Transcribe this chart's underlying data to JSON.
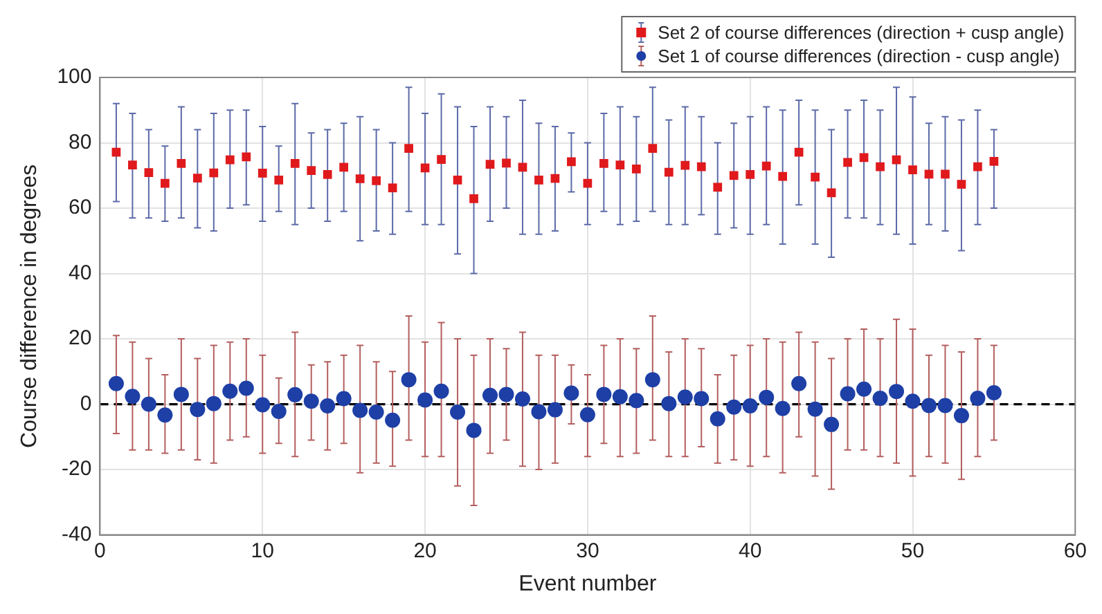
{
  "chart_data": {
    "type": "scatter",
    "xlabel": "Event number",
    "ylabel": "Course difference in degrees",
    "x": [
      1,
      2,
      3,
      4,
      5,
      6,
      7,
      8,
      9,
      10,
      11,
      12,
      13,
      14,
      15,
      16,
      17,
      18,
      19,
      20,
      21,
      22,
      23,
      24,
      25,
      26,
      27,
      28,
      29,
      30,
      31,
      32,
      33,
      34,
      35,
      36,
      37,
      38,
      39,
      40,
      41,
      42,
      43,
      44,
      45,
      46,
      47,
      48,
      49,
      50,
      51,
      52,
      53,
      54,
      55
    ],
    "series": [
      {
        "name": "Set 2 of course differences (direction + cusp angle)",
        "color": "#e0191c",
        "marker": "square",
        "values": [
          77.1,
          73.2,
          70.9,
          67.6,
          73.7,
          69.2,
          70.8,
          74.8,
          75.7,
          70.7,
          68.6,
          73.7,
          71.5,
          70.3,
          72.5,
          69.0,
          68.4,
          66.2,
          78.3,
          72.3,
          74.9,
          68.6,
          62.9,
          73.4,
          73.8,
          72.5,
          68.6,
          69.1,
          74.2,
          67.6,
          73.7,
          73.2,
          72.0,
          78.3,
          71.0,
          73.1,
          72.7,
          66.4,
          70.0,
          70.3,
          72.9,
          69.7,
          77.1,
          69.5,
          64.7,
          74.0,
          75.5,
          72.7,
          74.8,
          71.7,
          70.4,
          70.4,
          67.3,
          72.7,
          74.3
        ],
        "errors": [
          [
            62,
            92
          ],
          [
            57,
            89
          ],
          [
            57,
            84
          ],
          [
            56,
            79
          ],
          [
            57,
            91
          ],
          [
            54,
            84
          ],
          [
            53,
            89
          ],
          [
            60,
            90
          ],
          [
            61,
            90
          ],
          [
            56,
            85
          ],
          [
            59,
            79
          ],
          [
            55,
            92
          ],
          [
            60,
            83
          ],
          [
            56,
            84
          ],
          [
            59,
            86
          ],
          [
            50,
            88
          ],
          [
            53,
            84
          ],
          [
            52,
            80
          ],
          [
            59,
            97
          ],
          [
            55,
            89
          ],
          [
            55,
            95
          ],
          [
            46,
            91
          ],
          [
            40,
            85
          ],
          [
            56,
            91
          ],
          [
            60,
            88
          ],
          [
            52,
            93
          ],
          [
            52,
            86
          ],
          [
            53,
            85
          ],
          [
            65,
            83
          ],
          [
            55,
            80
          ],
          [
            59,
            89
          ],
          [
            55,
            91
          ],
          [
            56,
            88
          ],
          [
            59,
            97
          ],
          [
            55,
            87
          ],
          [
            55,
            91
          ],
          [
            58,
            88
          ],
          [
            52,
            80
          ],
          [
            54,
            86
          ],
          [
            52,
            88
          ],
          [
            55,
            91
          ],
          [
            49,
            90
          ],
          [
            61,
            93
          ],
          [
            49,
            90
          ],
          [
            45,
            84
          ],
          [
            57,
            90
          ],
          [
            57,
            93
          ],
          [
            55,
            90
          ],
          [
            52,
            97
          ],
          [
            49,
            94
          ],
          [
            55,
            86
          ],
          [
            53,
            88
          ],
          [
            47,
            87
          ],
          [
            55,
            90
          ],
          [
            60,
            84
          ]
        ]
      },
      {
        "name": "Set 1 of course differences (direction - cusp angle)",
        "color": "#1d3fa6",
        "marker": "circle",
        "values": [
          6.3,
          2.4,
          0.0,
          -3.3,
          3.0,
          -1.6,
          0.2,
          4.0,
          4.9,
          -0.2,
          -2.2,
          2.9,
          0.9,
          -0.5,
          1.7,
          -1.9,
          -2.4,
          -4.9,
          7.5,
          1.3,
          4.0,
          -2.4,
          -8.0,
          2.7,
          3.0,
          1.6,
          -2.3,
          -1.7,
          3.4,
          -3.2,
          3.0,
          2.3,
          1.1,
          7.5,
          0.2,
          2.2,
          1.7,
          -4.5,
          -0.9,
          -0.5,
          2.1,
          -1.3,
          6.3,
          -1.5,
          -6.2,
          3.2,
          4.6,
          1.8,
          3.9,
          0.9,
          -0.4,
          -0.4,
          -3.5,
          1.8,
          3.5
        ],
        "errors": [
          [
            -9,
            21
          ],
          [
            -14,
            19
          ],
          [
            -14,
            14
          ],
          [
            -15,
            9
          ],
          [
            -14,
            20
          ],
          [
            -17,
            14
          ],
          [
            -18,
            18
          ],
          [
            -11,
            19
          ],
          [
            -10,
            20
          ],
          [
            -15,
            15
          ],
          [
            -12,
            8
          ],
          [
            -16,
            22
          ],
          [
            -11,
            12
          ],
          [
            -14,
            13
          ],
          [
            -12,
            15
          ],
          [
            -21,
            18
          ],
          [
            -18,
            13
          ],
          [
            -19,
            10
          ],
          [
            -11,
            27
          ],
          [
            -16,
            19
          ],
          [
            -16,
            25
          ],
          [
            -25,
            20
          ],
          [
            -31,
            15
          ],
          [
            -15,
            20
          ],
          [
            -11,
            17
          ],
          [
            -19,
            22
          ],
          [
            -20,
            15
          ],
          [
            -18,
            15
          ],
          [
            -6,
            12
          ],
          [
            -16,
            9
          ],
          [
            -12,
            18
          ],
          [
            -16,
            20
          ],
          [
            -15,
            17
          ],
          [
            -11,
            27
          ],
          [
            -16,
            16
          ],
          [
            -16,
            20
          ],
          [
            -13,
            17
          ],
          [
            -18,
            9
          ],
          [
            -17,
            15
          ],
          [
            -19,
            18
          ],
          [
            -16,
            20
          ],
          [
            -21,
            19
          ],
          [
            -10,
            22
          ],
          [
            -22,
            19
          ],
          [
            -26,
            14
          ],
          [
            -14,
            20
          ],
          [
            -14,
            23
          ],
          [
            -16,
            20
          ],
          [
            -18,
            26
          ],
          [
            -22,
            23
          ],
          [
            -16,
            15
          ],
          [
            -18,
            18
          ],
          [
            -23,
            16
          ],
          [
            -16,
            20
          ],
          [
            -11,
            18
          ]
        ]
      }
    ],
    "xlim": [
      0,
      60
    ],
    "xticks": [
      0,
      10,
      20,
      30,
      40,
      50,
      60
    ],
    "ylim": [
      -40,
      100
    ],
    "yticks": [
      -40,
      -20,
      0,
      20,
      40,
      60,
      80,
      100
    ],
    "ref_lines": [
      {
        "axis": "y",
        "value": 0,
        "color": "#000000",
        "line_style": "dashed"
      }
    ],
    "grid": true,
    "legend": "top right"
  }
}
